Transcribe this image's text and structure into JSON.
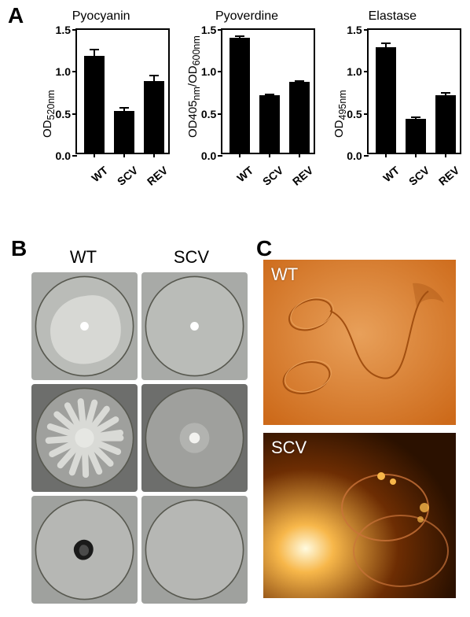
{
  "panelA": {
    "label": "A",
    "ylim": [
      0,
      1.5
    ],
    "ytick_step": 0.5,
    "categories": [
      "WT",
      "SCV",
      "REV"
    ],
    "bar_color": "#000000",
    "charts": [
      {
        "title": "Pyocyanin",
        "ylabel_plain": "OD",
        "ylabel_sub": "520nm",
        "ylabel_after": "",
        "values": [
          1.15,
          0.5,
          0.85
        ],
        "errors": [
          0.08,
          0.03,
          0.07
        ]
      },
      {
        "title": "Pyoverdine",
        "ylabel_plain": "OD405",
        "ylabel_sub": "nm",
        "ylabel_after": "/OD",
        "ylabel_sub2": "600nm",
        "values": [
          1.37,
          0.68,
          0.84
        ],
        "errors": [
          0.02,
          0.01,
          0.01
        ]
      },
      {
        "title": "Elastase",
        "ylabel_plain": "OD",
        "ylabel_sub": "495nm",
        "ylabel_after": "",
        "values": [
          1.26,
          0.4,
          0.68
        ],
        "errors": [
          0.04,
          0.02,
          0.03
        ]
      }
    ]
  },
  "panelB": {
    "label": "B",
    "columns": [
      "WT",
      "SCV"
    ],
    "rows": 3,
    "dish_bg_tones": [
      "#a8aaa7",
      "#6d6e6c",
      "#9fa19e"
    ],
    "plate_tone": "#c9cac7"
  },
  "panelC": {
    "label": "C",
    "images": [
      {
        "label": "WT",
        "bg": "#cd6a1a",
        "hilite": "#e8a05a",
        "shadow": "#a24f10"
      },
      {
        "label": "SCV",
        "bg": "#6d2d03",
        "hilite": "#f7b74a",
        "shadow": "#2b1100"
      }
    ]
  }
}
